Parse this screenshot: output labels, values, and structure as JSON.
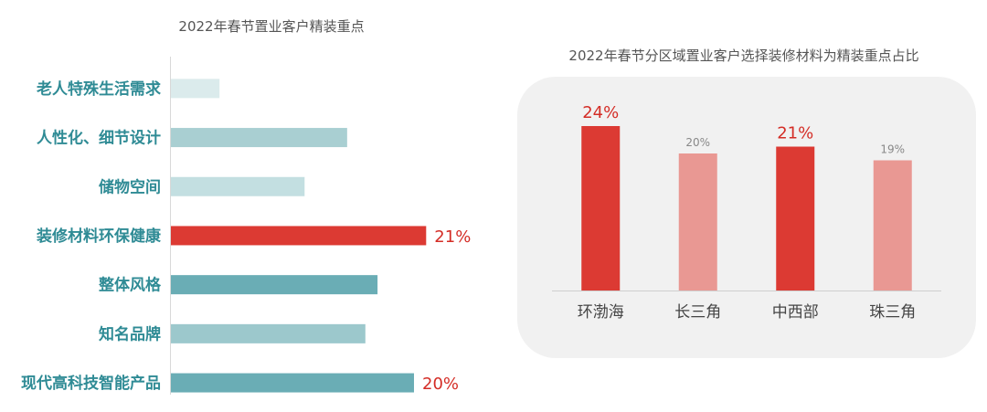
{
  "left_chart_title": "2022年春节置业客户精装重点",
  "right_chart_title": "2022年春节分区域置业客户选择装修材料为精装重点占比",
  "colors": {
    "teal_dark": "#6aadb5",
    "teal_mid": "#9cc8cc",
    "teal_light": "#c3dfe1",
    "teal_faint": "#dbebec",
    "red": "#dc3a33",
    "pink": "#e99893",
    "label_teal": "#2f8b95",
    "value_red": "#d42d26",
    "value_gray": "#888888"
  },
  "chart_data": [
    {
      "type": "bar",
      "orientation": "horizontal",
      "title": "2022年春节置业客户精装重点",
      "categories": [
        "老人特殊生活需求",
        "人性化、细节设计",
        "储物空间",
        "装修材料环保健康",
        "整体风格",
        "知名品牌",
        "现代高科技智能产品"
      ],
      "values": [
        4,
        14.5,
        11,
        21,
        17,
        16,
        20
      ],
      "value_labels": [
        "",
        "",
        "",
        "21%",
        "",
        "",
        "20%"
      ],
      "bar_colors": [
        "#dbebec",
        "#a9cfd2",
        "#c3dfe1",
        "#dc3a33",
        "#6aadb5",
        "#9cc8cc",
        "#6aadb5"
      ],
      "xlim": [
        0,
        24
      ]
    },
    {
      "type": "bar",
      "orientation": "vertical",
      "title": "2022年春节分区域置业客户选择装修材料为精装重点占比",
      "categories": [
        "环渤海",
        "长三角",
        "中西部",
        "珠三角"
      ],
      "values": [
        24,
        20,
        21,
        19
      ],
      "value_labels": [
        "24%",
        "20%",
        "21%",
        "19%"
      ],
      "bar_colors": [
        "#dc3a33",
        "#e99893",
        "#dc3a33",
        "#e99893"
      ],
      "highlight": [
        true,
        false,
        true,
        false
      ],
      "ylim": [
        0,
        24
      ]
    }
  ]
}
